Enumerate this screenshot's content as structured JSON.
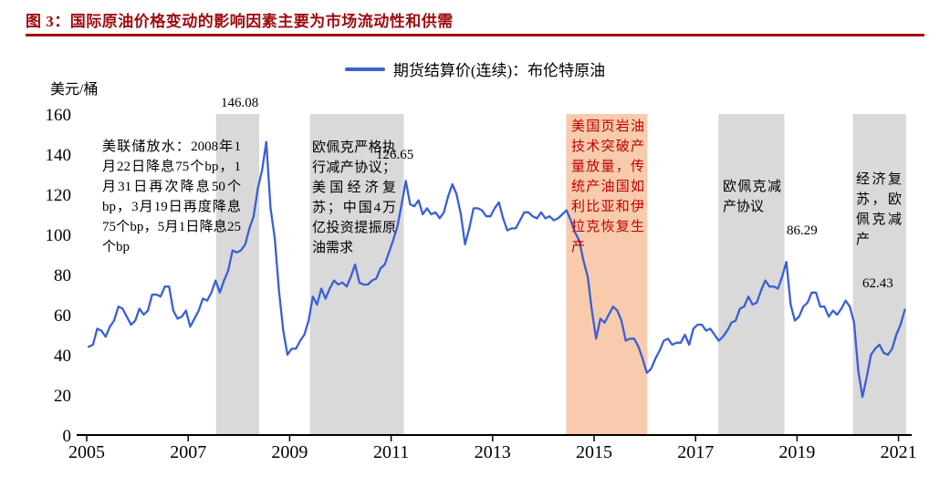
{
  "header": {
    "title": "图 3：国际原油价格变动的影响因素主要为市场流动性和供需",
    "title_color": "#9e0b0f"
  },
  "legend": {
    "label": "期货结算价(连续)：布伦特原油"
  },
  "y_axis_unit": "美元/桶",
  "annotations": {
    "fed": "美联储放水：2008年1月22日降息75个bp，1月31日再次降息50个bp，3月19日再度降息75个bp，5月1日降息25个bp",
    "opec_2009": "欧佩克严格执行减产协议；美国经济复苏；中国4万亿投资提振原油需求",
    "shale": "美国页岩油技术突破产量放量，传统产油国如利比亚和伊拉克恢复生产",
    "shale_color": "#c00000",
    "opec_cut": "欧佩克减产协议",
    "recovery": "经济复苏，欧佩克减产"
  },
  "chart_data": {
    "type": "line",
    "title": "期货结算价(连续)：布伦特原油",
    "xlabel": "",
    "ylabel": "美元/桶",
    "ylim": [
      0,
      160
    ],
    "xlim": [
      2005,
      2021.3
    ],
    "grid": false,
    "legend_position": "top-center",
    "y_ticks": [
      0,
      20,
      40,
      60,
      80,
      100,
      120,
      140,
      160
    ],
    "x_ticks": [
      2005,
      2007,
      2009,
      2011,
      2013,
      2015,
      2017,
      2019,
      2021
    ],
    "line_color": "#3a5fd6",
    "band_gray": "#d9d9d9",
    "band_orange": "#f8cbad",
    "x_start": 2005.04,
    "x_step": 0.0833333,
    "values": [
      44,
      45,
      53,
      52,
      49,
      54,
      57,
      64,
      63,
      59,
      55,
      57,
      63,
      60,
      62,
      70,
      70,
      69,
      74,
      74,
      62,
      58,
      59,
      62,
      54,
      58,
      62,
      68,
      67,
      71,
      77,
      71,
      77,
      82,
      92,
      91,
      92,
      95,
      103,
      109,
      123,
      132,
      146.08,
      113,
      98,
      72,
      52,
      40,
      43,
      43,
      47,
      50,
      57,
      69,
      65,
      73,
      68,
      73,
      77,
      75,
      76,
      74,
      79,
      85,
      76,
      75,
      75,
      77,
      78,
      83,
      85,
      91,
      97,
      104,
      115,
      126.65,
      115,
      114,
      117,
      110,
      113,
      110,
      111,
      108,
      111,
      119,
      125,
      120,
      110,
      95,
      103,
      113,
      113,
      112,
      109,
      109,
      113,
      116,
      108,
      102,
      103,
      103,
      107,
      111,
      111,
      109,
      108,
      111,
      108,
      109,
      107,
      108,
      110,
      112,
      107,
      101,
      97,
      87,
      79,
      62,
      48,
      58,
      56,
      60,
      64,
      62,
      57,
      47,
      48,
      48,
      44,
      38,
      31,
      33,
      38,
      42,
      47,
      48,
      45,
      46,
      46,
      50,
      45,
      53,
      55,
      55,
      52,
      53,
      50,
      47,
      49,
      52,
      56,
      57,
      63,
      64,
      69,
      65,
      66,
      72,
      77,
      74,
      74,
      73,
      79,
      86.29,
      65,
      57,
      59,
      64,
      66,
      71,
      71,
      64,
      64,
      59,
      62,
      60,
      63,
      67,
      64,
      56,
      32,
      19,
      29,
      40,
      43,
      45,
      41,
      40,
      43,
      50,
      55,
      62.43
    ],
    "bands": [
      {
        "x0": 2007.55,
        "x1": 2008.4,
        "color": "#d9d9d9"
      },
      {
        "x0": 2009.4,
        "x1": 2011.25,
        "color": "#d9d9d9"
      },
      {
        "x0": 2014.45,
        "x1": 2016.05,
        "color": "#f8cbad"
      },
      {
        "x0": 2017.45,
        "x1": 2018.75,
        "color": "#d9d9d9"
      },
      {
        "x0": 2020.1,
        "x1": 2021.15,
        "color": "#d9d9d9"
      }
    ],
    "point_labels": [
      {
        "x": 2008.54,
        "y": 146.08,
        "label": "146.08"
      },
      {
        "x": 2011.29,
        "y": 126.65,
        "label": "126.65"
      },
      {
        "x": 2018.79,
        "y": 86.29,
        "label": "86.29"
      },
      {
        "x": 2021.12,
        "y": 62.43,
        "label": "62.43"
      }
    ]
  }
}
